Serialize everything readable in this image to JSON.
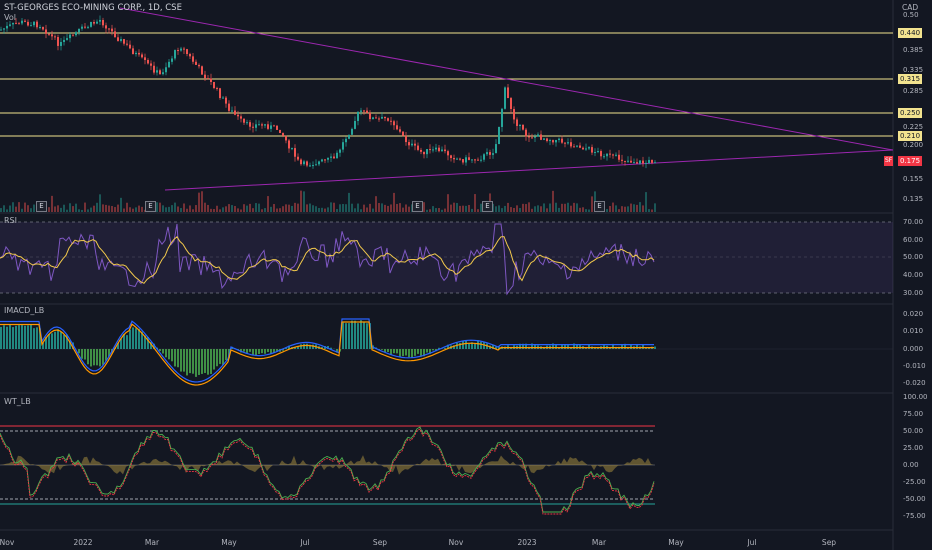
{
  "header": {
    "title": "ST-GEORGES ECO-MINING CORP., 1D, CSE",
    "volume_label": "Vol",
    "currency": "CAD"
  },
  "price_axis": {
    "labels": [
      "0.50",
      "0.385",
      "0.335",
      "0.285",
      "0.225",
      "0.200",
      "0.155",
      "0.135"
    ]
  },
  "horizontal_levels": [
    "0.440",
    "0.315",
    "0.250",
    "0.210"
  ],
  "last_price": {
    "value": "0.175",
    "badge": "SF"
  },
  "panes": {
    "rsi": {
      "title": "RSI",
      "labels": [
        "70.00",
        "60.00",
        "50.00",
        "40.00",
        "30.00"
      ]
    },
    "macd": {
      "title": "IMACD_LB",
      "labels": [
        "0.020",
        "0.010",
        "0.000",
        "-0.010",
        "-0.020"
      ]
    },
    "wt": {
      "title": "WT_LB",
      "labels": [
        "100.00",
        "75.00",
        "50.00",
        "25.00",
        "0.00",
        "-25.00",
        "-50.00",
        "-75.00"
      ]
    }
  },
  "time_axis": [
    "Nov",
    "2022",
    "Mar",
    "May",
    "Jul",
    "Sep",
    "Nov",
    "2023",
    "Mar",
    "May",
    "Jul",
    "Sep"
  ],
  "earnings_marker": "E",
  "colors": {
    "background": "#131722",
    "up": "#26a69a",
    "down": "#ef5350",
    "level": "#f2e38f",
    "trendline": "#9c27b0",
    "rsi_line": "#7e57c2",
    "rsi_ma": "#f2c94c"
  }
}
